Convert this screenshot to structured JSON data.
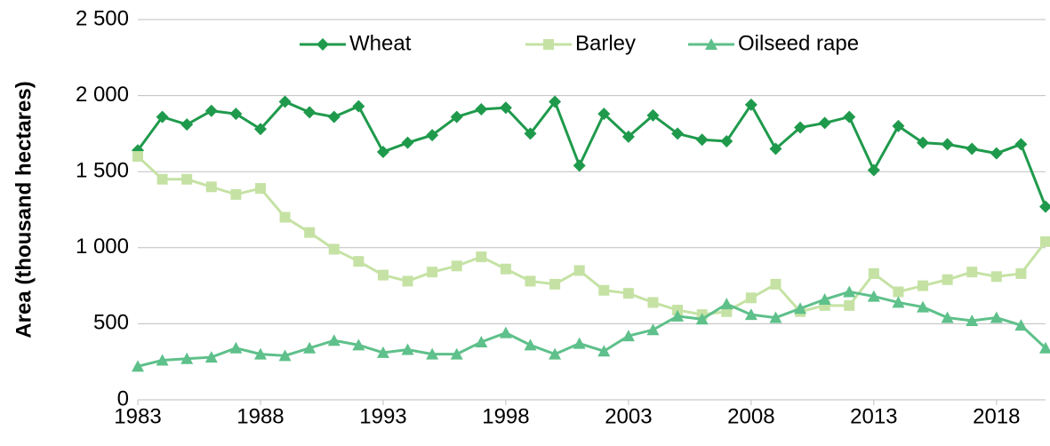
{
  "chart_data": {
    "type": "line",
    "ylabel": "Area (thousand hectares)",
    "x": [
      1983,
      1984,
      1985,
      1986,
      1987,
      1988,
      1989,
      1990,
      1991,
      1992,
      1993,
      1994,
      1995,
      1996,
      1997,
      1998,
      1999,
      2000,
      2001,
      2002,
      2003,
      2004,
      2005,
      2006,
      2007,
      2008,
      2009,
      2010,
      2011,
      2012,
      2013,
      2014,
      2015,
      2016,
      2017,
      2018,
      2019,
      2020
    ],
    "series": [
      {
        "name": "Wheat",
        "color": "#1f9a4c",
        "marker": "diamond",
        "values": [
          1640,
          1860,
          1810,
          1900,
          1880,
          1780,
          1960,
          1890,
          1860,
          1930,
          1630,
          1690,
          1740,
          1860,
          1910,
          1920,
          1750,
          1960,
          1540,
          1880,
          1730,
          1870,
          1750,
          1710,
          1700,
          1940,
          1650,
          1790,
          1820,
          1860,
          1510,
          1800,
          1690,
          1680,
          1650,
          1620,
          1680,
          1270
        ]
      },
      {
        "name": "Barley",
        "color": "#c5e2a4",
        "marker": "square",
        "values": [
          1600,
          1450,
          1450,
          1400,
          1350,
          1390,
          1200,
          1100,
          990,
          910,
          820,
          780,
          840,
          880,
          940,
          860,
          780,
          760,
          850,
          720,
          700,
          640,
          590,
          560,
          580,
          670,
          760,
          580,
          620,
          620,
          830,
          710,
          750,
          790,
          840,
          810,
          830,
          1040
        ]
      },
      {
        "name": "Oilseed rape",
        "color": "#5ec08a",
        "marker": "triangle",
        "values": [
          220,
          260,
          270,
          280,
          340,
          300,
          290,
          340,
          390,
          360,
          310,
          330,
          300,
          300,
          380,
          440,
          360,
          300,
          370,
          320,
          420,
          460,
          550,
          530,
          630,
          560,
          540,
          600,
          660,
          710,
          680,
          640,
          610,
          540,
          520,
          540,
          490,
          340
        ]
      }
    ],
    "xlim": [
      1983,
      2020
    ],
    "xticks": [
      1983,
      1988,
      1993,
      1998,
      2003,
      2008,
      2013,
      2018
    ],
    "ylim": [
      0,
      2500
    ],
    "yticks": [
      0,
      500,
      {
        "value": 1000,
        "label": "1 000"
      },
      {
        "value": 1500,
        "label": "1 500"
      },
      {
        "value": 2000,
        "label": "2 000"
      },
      {
        "value": 2500,
        "label": "2 500"
      }
    ],
    "grid": true,
    "legend": "top"
  }
}
